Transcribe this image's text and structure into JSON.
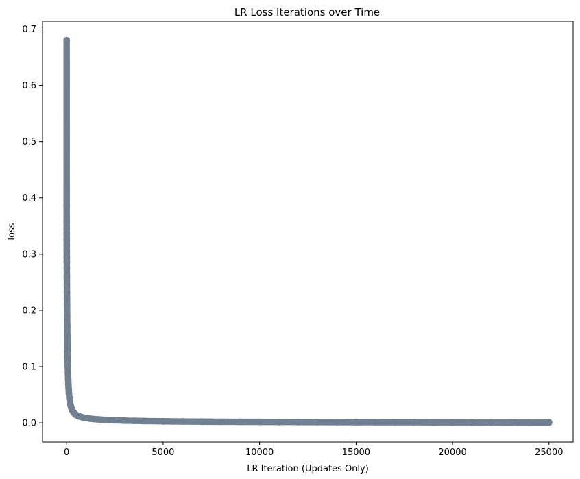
{
  "chart_data": {
    "type": "line",
    "title": "LR Loss Iterations over Time",
    "xlabel": "LR Iteration (Updates Only)",
    "ylabel": "loss",
    "xlim": [
      -1250,
      26250
    ],
    "ylim": [
      -0.034,
      0.714
    ],
    "xticks": [
      0,
      5000,
      10000,
      15000,
      20000,
      25000
    ],
    "yticks": [
      0.0,
      0.1,
      0.2,
      0.3,
      0.4,
      0.5,
      0.6,
      0.7
    ],
    "xtick_labels": [
      "0",
      "5000",
      "10000",
      "15000",
      "20000",
      "25000"
    ],
    "ytick_labels": [
      "0.0",
      "0.1",
      "0.2",
      "0.3",
      "0.4",
      "0.5",
      "0.6",
      "0.7"
    ],
    "grid": false,
    "marker": "o",
    "series": [
      {
        "color": "#708090",
        "x": [
          0,
          1,
          2,
          3,
          4,
          5,
          6,
          7,
          8,
          9,
          10,
          12,
          14,
          16,
          18,
          20,
          25,
          30,
          35,
          40,
          45,
          50,
          60,
          70,
          80,
          90,
          100,
          120,
          140,
          160,
          180,
          200,
          250,
          300,
          350,
          400,
          450,
          500,
          600,
          700,
          800,
          900,
          1000,
          1200,
          1400,
          1600,
          1800,
          2000,
          2500,
          3000,
          3500,
          4000,
          5000,
          6000,
          7000,
          8000,
          9000,
          10000,
          11000,
          12000,
          13000,
          14000,
          15000,
          16000,
          17000,
          18000,
          19000,
          20000,
          21000,
          22000,
          23000,
          24000,
          25000
        ],
        "y": [
          0.68,
          0.386,
          0.358,
          0.346,
          0.336,
          0.326,
          0.316,
          0.305,
          0.295,
          0.285,
          0.276,
          0.26,
          0.245,
          0.232,
          0.22,
          0.21,
          0.19,
          0.172,
          0.155,
          0.14,
          0.128,
          0.117,
          0.1,
          0.087,
          0.077,
          0.069,
          0.062,
          0.052,
          0.045,
          0.04,
          0.036,
          0.032,
          0.026,
          0.022,
          0.019,
          0.017,
          0.015,
          0.014,
          0.012,
          0.011,
          0.01,
          0.009,
          0.0085,
          0.0075,
          0.0068,
          0.0062,
          0.0057,
          0.0053,
          0.0045,
          0.004,
          0.0036,
          0.0033,
          0.0028,
          0.0025,
          0.0022,
          0.002,
          0.0019,
          0.0018,
          0.0017,
          0.0016,
          0.0015,
          0.0014,
          0.0013,
          0.0013,
          0.0012,
          0.0012,
          0.0011,
          0.0011,
          0.001,
          0.001,
          0.001,
          0.0009,
          0.0009
        ]
      }
    ]
  }
}
